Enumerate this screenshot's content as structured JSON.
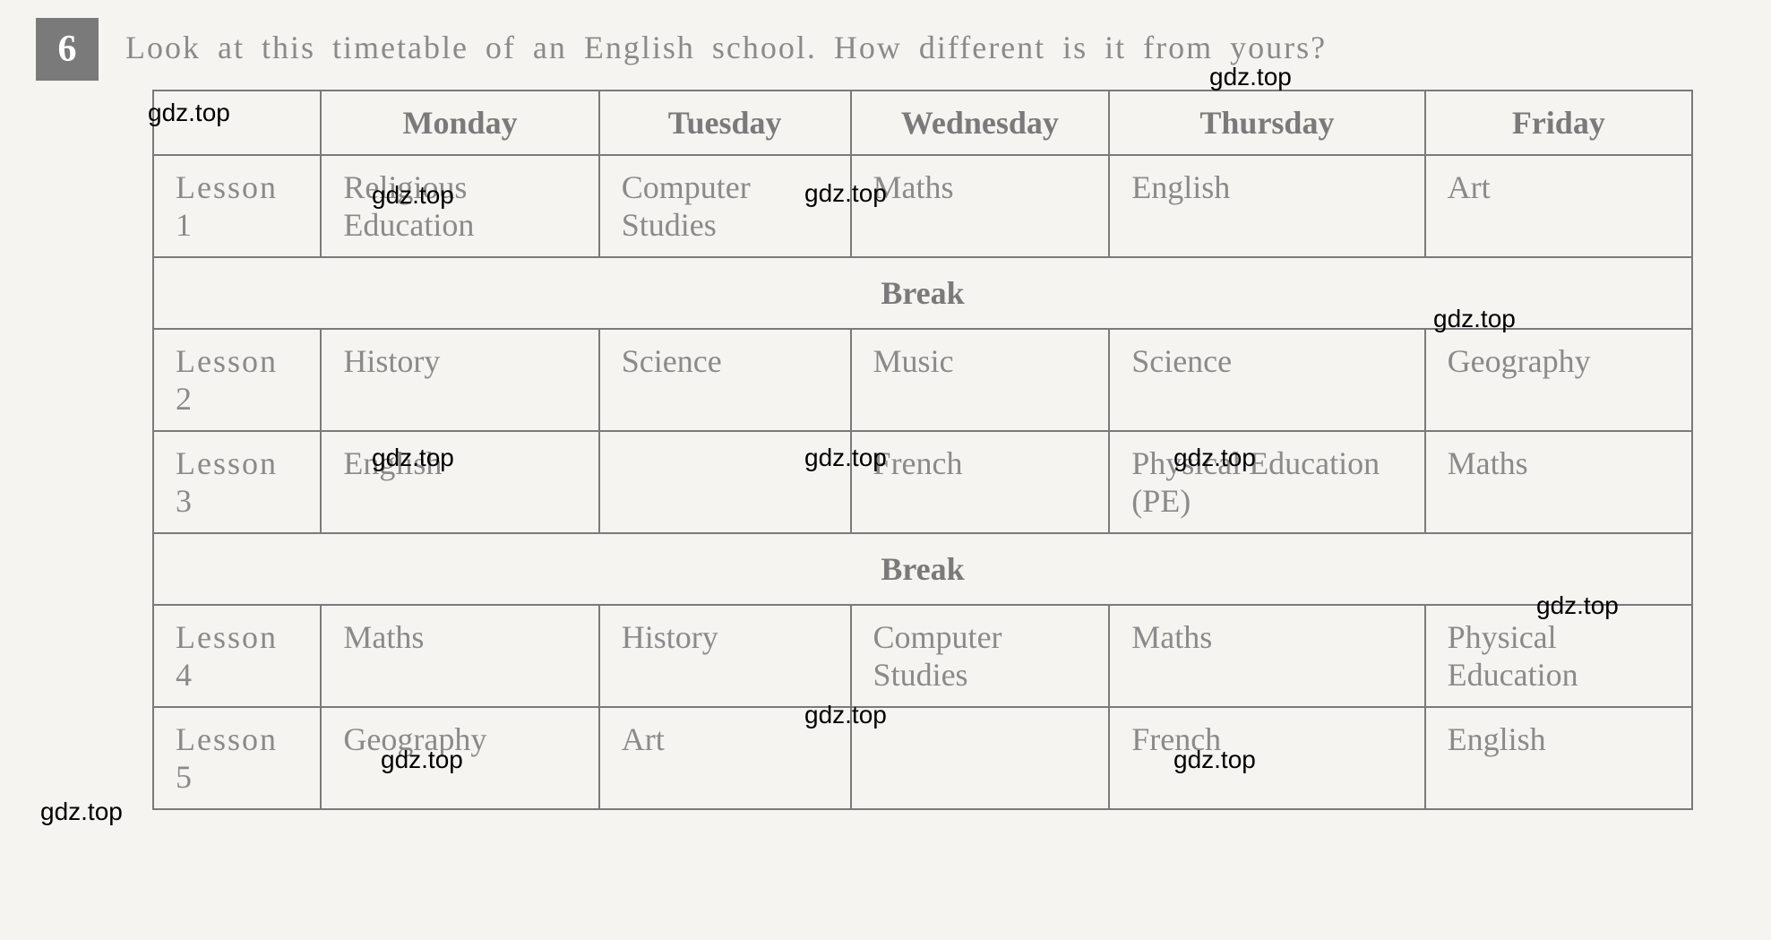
{
  "exercise_number": "6",
  "instruction": "Look at this timetable of an English school. How different is it from yours?",
  "watermark_text": "gdz.top",
  "table": {
    "type": "table",
    "background_color": "#f5f4f0",
    "border_color": "#7a7a7a",
    "text_color": "#8a8a8a",
    "header_color": "#7a7a7a",
    "font_size": 36,
    "columns": [
      "",
      "Monday",
      "Tuesday",
      "Wednesday",
      "Thursday",
      "Friday"
    ],
    "rows": [
      {
        "label": "Lesson  1",
        "cells": [
          "Religious Education",
          "Computer Studies",
          "Maths",
          "English",
          "Art"
        ]
      },
      {
        "break": true,
        "label": "Break"
      },
      {
        "label": "Lesson  2",
        "cells": [
          "History",
          "Science",
          "Music",
          "Science",
          "Geography"
        ]
      },
      {
        "label": "Lesson  3",
        "cells": [
          "English",
          "",
          "French",
          "Physical Education (PE)",
          "Maths"
        ]
      },
      {
        "break": true,
        "label": "Break"
      },
      {
        "label": "Lesson  4",
        "cells": [
          "Maths",
          "History",
          "Computer Studies",
          "Maths",
          "Physical Education"
        ]
      },
      {
        "label": "Lesson  5",
        "cells": [
          "Geography",
          "Art",
          "",
          "French",
          "English"
        ]
      }
    ]
  }
}
